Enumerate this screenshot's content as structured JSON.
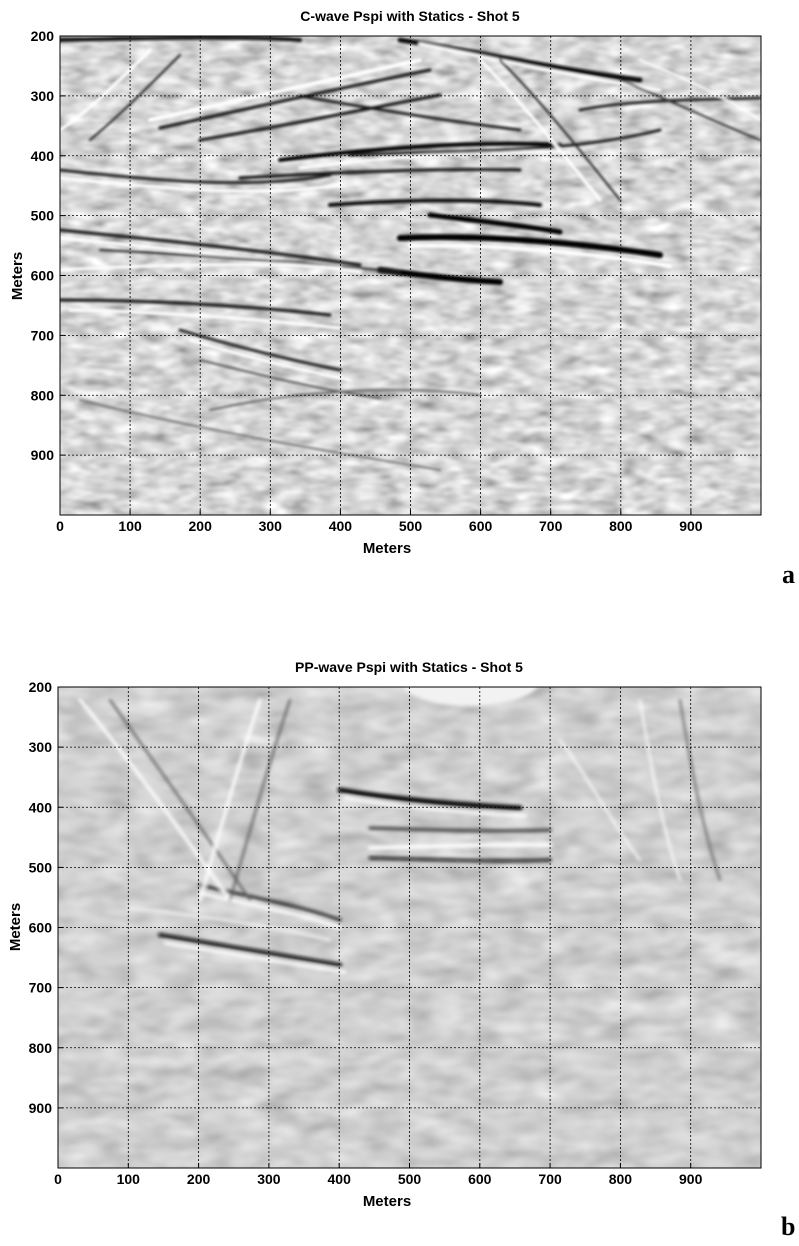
{
  "panel_a_label": "a",
  "panel_b_label": "b",
  "chart_data": [
    {
      "type": "heatmap",
      "title": "C-wave Pspi with Statics - Shot 5",
      "xlabel": "Meters",
      "ylabel": "Meters",
      "xticks": [
        0,
        100,
        200,
        300,
        400,
        500,
        600,
        700,
        800,
        900
      ],
      "yticks": [
        200,
        300,
        400,
        500,
        600,
        700,
        800,
        900
      ],
      "xlim": [
        0,
        1000
      ],
      "ylim": [
        200,
        1000
      ],
      "y_inverted": true,
      "grid": true,
      "colormap": "grayscale",
      "colors": {
        "background": "#a9a9a9",
        "dark": "#000000",
        "bright": "#ffffff"
      }
    },
    {
      "type": "heatmap",
      "title": "PP-wave Pspi with Statics - Shot 5",
      "xlabel": "Meters",
      "ylabel": "Meters",
      "xticks": [
        0,
        100,
        200,
        300,
        400,
        500,
        600,
        700,
        800,
        900
      ],
      "yticks": [
        200,
        300,
        400,
        500,
        600,
        700,
        800,
        900
      ],
      "xlim": [
        0,
        1000
      ],
      "ylim": [
        200,
        1000
      ],
      "y_inverted": true,
      "grid": true,
      "colormap": "grayscale",
      "colors": {
        "background": "#a6a6a6",
        "dark": "#000000",
        "bright": "#ffffff"
      }
    }
  ]
}
